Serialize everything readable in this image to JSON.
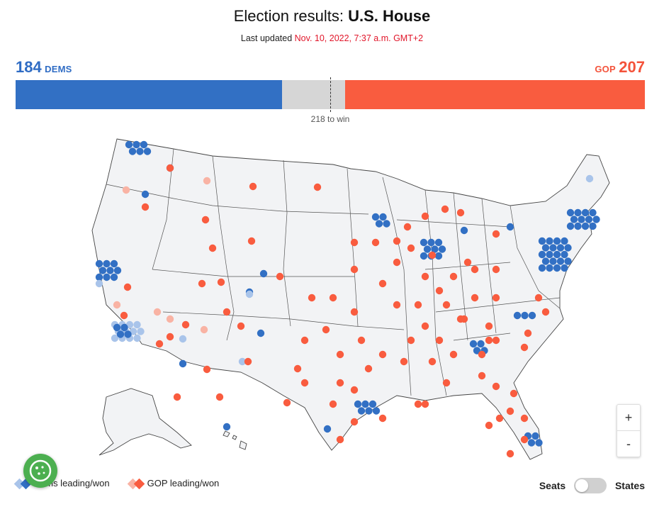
{
  "header": {
    "title_prefix": "Election results: ",
    "title_strong": "U.S. House",
    "updated_label": "Last updated ",
    "updated_time": "Nov. 10, 2022, 7:37 a.m. GMT+2"
  },
  "tally": {
    "dem_seats": "184",
    "dem_label": "DEMS",
    "gop_label": "GOP",
    "gop_seats": "207",
    "total_seats": 435,
    "to_win": "218 to win"
  },
  "colors": {
    "dem": "#3270c4",
    "dem_light": "#a9c4ea",
    "gop": "#f95c3f",
    "gop_light": "#f9b3a4",
    "undecided": "#d6d6d6"
  },
  "legend": {
    "dem": "Dems leading/won",
    "gop": "GOP leading/won"
  },
  "controls": {
    "zoom_in": "+",
    "zoom_out": "-",
    "toggle_left": "Seats",
    "toggle_right": "States",
    "toggle_state": "Seats"
  },
  "icons": {
    "cookie": "cookie-settings-icon",
    "zoom_in": "plus-icon",
    "zoom_out": "minus-icon"
  }
}
